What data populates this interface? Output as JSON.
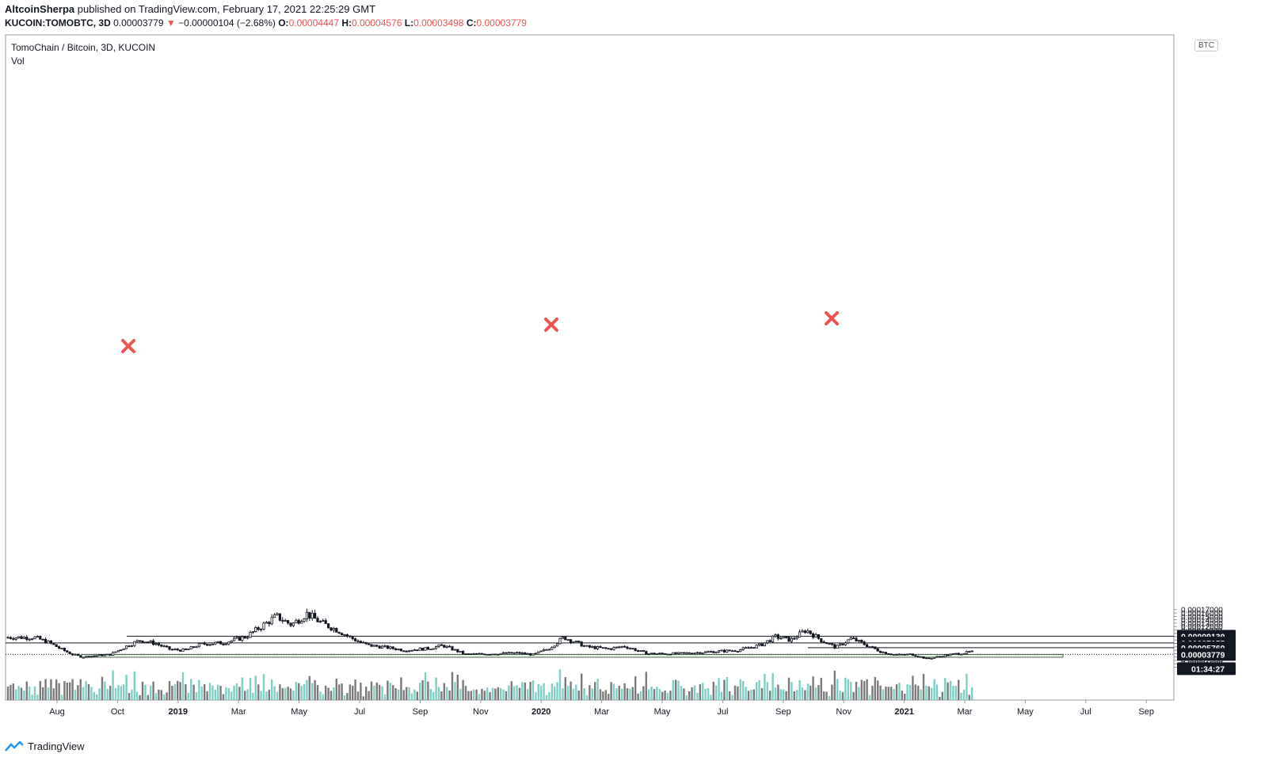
{
  "header": {
    "author": "AltcoinSherpa",
    "published_text": "published on TradingView.com, February 17, 2021 22:25:29 GMT",
    "symbol": "KUCOIN:TOMOBTC, 3D",
    "last_price": "0.00003779",
    "change_arrow": "▼",
    "change": "−0.00000104 (−2.68%)",
    "o_label": "O:",
    "o_value": "0.00004447",
    "h_label": "H:",
    "h_value": "0.00004576",
    "l_label": "L:",
    "l_value": "0.00003498",
    "c_label": "C:",
    "c_value": "0.00003779"
  },
  "legend": {
    "title": "TomoChain / Bitcoin, 3D, KUCOIN",
    "vol": "Vol"
  },
  "currency_badge": "BTC",
  "footer": {
    "brand": "TradingView"
  },
  "colors": {
    "candle": "#131722",
    "volume_up": "#7ecfc6",
    "volume_down": "#7a7a7a",
    "support_zone": "#e3fbe0",
    "marker": "#ef5350"
  },
  "chart_data": {
    "type": "candlestick",
    "title": "TomoChain / Bitcoin, 3D, KUCOIN",
    "x_ticks": [
      "Aug",
      "Oct",
      "2019",
      "Mar",
      "May",
      "Jul",
      "Sep",
      "Nov",
      "2020",
      "Mar",
      "May",
      "Jul",
      "Sep",
      "Nov",
      "2021",
      "Mar",
      "May",
      "Jul",
      "Sep"
    ],
    "y_ticks": [
      "0.00017000",
      "0.00016000",
      "0.00015000",
      "0.00014000",
      "0.00013000",
      "0.00012000",
      "0.00011000",
      "0.00010000",
      "0.00009000",
      "0.00008000",
      "0.00007000",
      "0.00006000",
      "0.00005000",
      "0.00004000",
      "0.00003000",
      "0.00002000",
      "0.00001000",
      "0.00000000"
    ],
    "ylim": [
      0.0,
      0.000179
    ],
    "price_labels": {
      "current": "0.00003779",
      "countdown": "01:34:27",
      "resistance_1": "0.00009130",
      "resistance_2": "0.00007155",
      "level_3": "0.00005760"
    },
    "horizontal_levels": [
      9.13e-05,
      7.155e-05,
      5.76e-05
    ],
    "support_zone": [
      2.93e-05,
      3.78e-05
    ],
    "rejection_markers": [
      "Oct 2018",
      "Dec 2019",
      "Oct 2020"
    ],
    "price_path": [
      [
        "Jul 2018",
        8.8e-05
      ],
      [
        "Jul 2018",
        7.2e-05
      ],
      [
        "Aug 2018",
        5.2e-05
      ],
      [
        "Aug 2018",
        3.8e-05
      ],
      [
        "Aug 2018",
        3e-05
      ],
      [
        "Sep 2018",
        3.4e-05
      ],
      [
        "Sep 2018",
        3.7e-05
      ],
      [
        "Oct 2018",
        6e-05
      ],
      [
        "Oct 2018",
        8e-05
      ],
      [
        "Nov 2018",
        7e-05
      ],
      [
        "Nov 2018",
        5.2e-05
      ],
      [
        "Dec 2018",
        5e-05
      ],
      [
        "Dec 2018",
        6.8e-05
      ],
      [
        "Jan 2019",
        7.2e-05
      ],
      [
        "Feb 2019",
        9e-05
      ],
      [
        "Feb 2019",
        0.00012
      ],
      [
        "Mar 2019",
        0.00015
      ],
      [
        "Mar 2019",
        0.000125
      ],
      [
        "Apr 2019",
        0.000158
      ],
      [
        "Apr 2019",
        0.00013
      ],
      [
        "May 2019",
        0.00011
      ],
      [
        "May 2019",
        8.5e-05
      ],
      [
        "Jun 2019",
        6.5e-05
      ],
      [
        "Jun 2019",
        6e-05
      ],
      [
        "Jul 2019",
        5e-05
      ],
      [
        "Aug 2019",
        5.5e-05
      ],
      [
        "Aug 2019",
        6.4e-05
      ],
      [
        "Sep 2019",
        3.8e-05
      ],
      [
        "Oct 2019",
        4e-05
      ],
      [
        "Nov 2019",
        4.2e-05
      ],
      [
        "Nov 2019",
        3.7e-05
      ],
      [
        "Dec 2019",
        5.5e-05
      ],
      [
        "Dec 2019",
        8.8e-05
      ],
      [
        "Jan 2020",
        6e-05
      ],
      [
        "Feb 2020",
        5.4e-05
      ],
      [
        "Feb 2020",
        6.2e-05
      ],
      [
        "Mar 2020",
        4e-05
      ],
      [
        "Apr 2020",
        4e-05
      ],
      [
        "May 2020",
        4.5e-05
      ],
      [
        "Jun 2020",
        5e-05
      ],
      [
        "Jul 2020",
        6.5e-05
      ],
      [
        "Jul 2020",
        9e-05
      ],
      [
        "Aug 2020",
        8e-05
      ],
      [
        "Aug 2020",
        0.00011
      ],
      [
        "Sep 2020",
        8e-05
      ],
      [
        "Sep 2020",
        5.8e-05
      ],
      [
        "Oct 2020",
        8.5e-05
      ],
      [
        "Oct 2020",
        6.5e-05
      ],
      [
        "Nov 2020",
        4.5e-05
      ],
      [
        "Nov 2020",
        3.6e-05
      ],
      [
        "Dec 2020",
        3.8e-05
      ],
      [
        "Dec 2020",
        2.5e-05
      ],
      [
        "Jan 2021",
        3.3e-05
      ],
      [
        "Jan 2021",
        4e-05
      ],
      [
        "Feb 2021",
        4.5e-05
      ],
      [
        "Feb 2021",
        3.78e-05
      ]
    ]
  }
}
